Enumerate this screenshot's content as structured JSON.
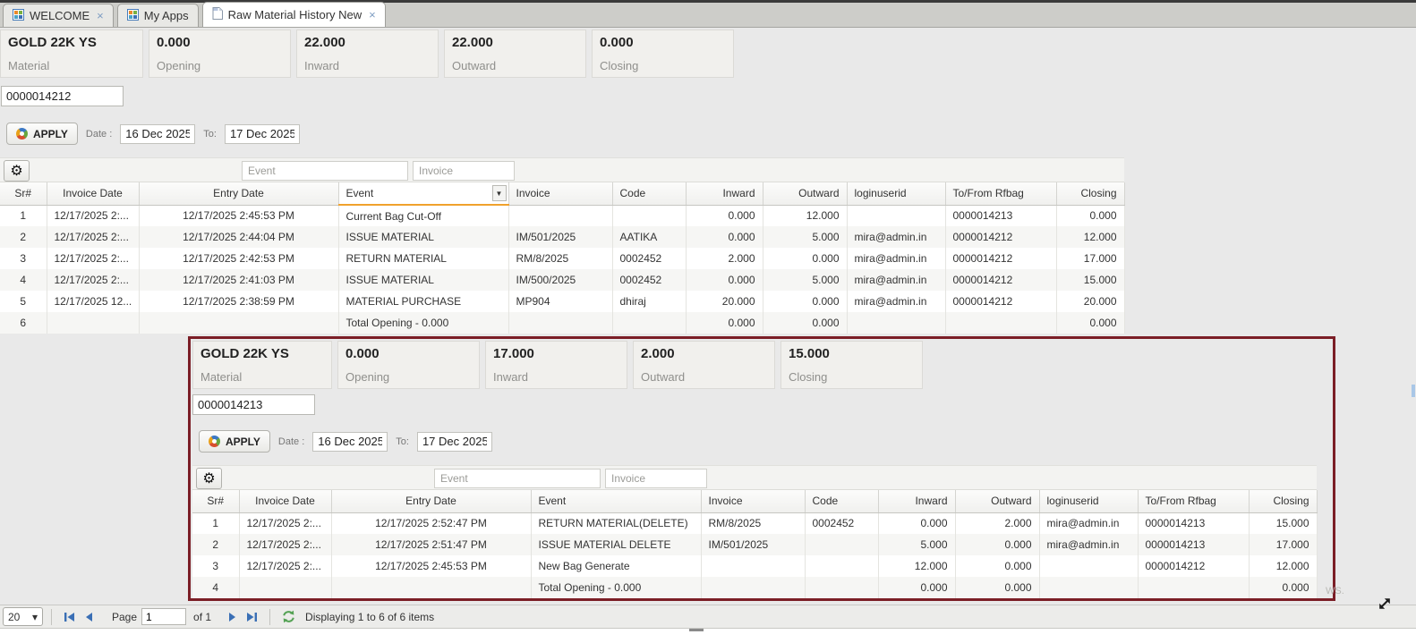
{
  "icons": {
    "gear": "⚙",
    "close": "×",
    "column_menu": "▼",
    "select_chevron": "▾"
  },
  "tabs": [
    {
      "label": "WELCOME",
      "active": false,
      "closable": true
    },
    {
      "label": "My Apps",
      "active": false,
      "closable": false
    },
    {
      "label": "Raw Material History New",
      "active": true,
      "closable": true
    }
  ],
  "panel1": {
    "summary": [
      {
        "value": "GOLD 22K YS",
        "label": "Material"
      },
      {
        "value": "0.000",
        "label": "Opening"
      },
      {
        "value": "22.000",
        "label": "Inward"
      },
      {
        "value": "22.000",
        "label": "Outward"
      },
      {
        "value": "0.000",
        "label": "Closing"
      }
    ],
    "bag_value": "0000014212",
    "apply": {
      "button": "APPLY",
      "date_label": "Date :",
      "from": "16 Dec 2025",
      "to_label": "To:",
      "to": "17 Dec 2025"
    },
    "filters": {
      "event_placeholder": "Event",
      "invoice_placeholder": "Invoice"
    },
    "table": {
      "columns": [
        "Sr#",
        "Invoice Date",
        "Entry Date",
        "Event",
        "Invoice",
        "Code",
        "Inward",
        "Outward",
        "loginuserid",
        "To/From Rfbag",
        "Closing"
      ],
      "rows": [
        [
          "1",
          "12/17/2025 2:...",
          "12/17/2025 2:45:53 PM",
          "Current Bag Cut-Off",
          "",
          "",
          "0.000",
          "12.000",
          "",
          "0000014213",
          "0.000"
        ],
        [
          "2",
          "12/17/2025 2:...",
          "12/17/2025 2:44:04 PM",
          "ISSUE MATERIAL",
          "IM/501/2025",
          "AATIKA",
          "0.000",
          "5.000",
          "mira@admin.in",
          "0000014212",
          "12.000"
        ],
        [
          "3",
          "12/17/2025 2:...",
          "12/17/2025 2:42:53 PM",
          "RETURN MATERIAL",
          "RM/8/2025",
          "0002452",
          "2.000",
          "0.000",
          "mira@admin.in",
          "0000014212",
          "17.000"
        ],
        [
          "4",
          "12/17/2025 2:...",
          "12/17/2025 2:41:03 PM",
          "ISSUE MATERIAL",
          "IM/500/2025",
          "0002452",
          "0.000",
          "5.000",
          "mira@admin.in",
          "0000014212",
          "15.000"
        ],
        [
          "5",
          "12/17/2025 12...",
          "12/17/2025 2:38:59 PM",
          "MATERIAL PURCHASE",
          "MP904",
          "dhiraj",
          "20.000",
          "0.000",
          "mira@admin.in",
          "0000014212",
          "20.000"
        ],
        [
          "6",
          "",
          "",
          "Total Opening - 0.000",
          "",
          "",
          "0.000",
          "0.000",
          "",
          "",
          "0.000"
        ]
      ]
    }
  },
  "panel2": {
    "summary": [
      {
        "value": "GOLD 22K YS",
        "label": "Material"
      },
      {
        "value": "0.000",
        "label": "Opening"
      },
      {
        "value": "17.000",
        "label": "Inward"
      },
      {
        "value": "2.000",
        "label": "Outward"
      },
      {
        "value": "15.000",
        "label": "Closing"
      }
    ],
    "bag_value": "0000014213",
    "apply": {
      "button": "APPLY",
      "date_label": "Date :",
      "from": "16 Dec 2025",
      "to_label": "To:",
      "to": "17 Dec 2025"
    },
    "filters": {
      "event_placeholder": "Event",
      "invoice_placeholder": "Invoice"
    },
    "table": {
      "columns": [
        "Sr#",
        "Invoice Date",
        "Entry Date",
        "Event",
        "Invoice",
        "Code",
        "Inward",
        "Outward",
        "loginuserid",
        "To/From Rfbag",
        "Closing"
      ],
      "rows": [
        [
          "1",
          "12/17/2025 2:...",
          "12/17/2025 2:52:47 PM",
          "RETURN MATERIAL(DELETE)",
          "RM/8/2025",
          "0002452",
          "0.000",
          "2.000",
          "mira@admin.in",
          "0000014213",
          "15.000"
        ],
        [
          "2",
          "12/17/2025 2:...",
          "12/17/2025 2:51:47 PM",
          "ISSUE MATERIAL DELETE",
          "IM/501/2025",
          "",
          "5.000",
          "0.000",
          "mira@admin.in",
          "0000014213",
          "17.000"
        ],
        [
          "3",
          "12/17/2025 2:...",
          "12/17/2025 2:45:53 PM",
          "New Bag Generate",
          "",
          "",
          "12.000",
          "0.000",
          "",
          "0000014212",
          "12.000"
        ],
        [
          "4",
          "",
          "",
          "Total Opening - 0.000",
          "",
          "",
          "0.000",
          "0.000",
          "",
          "",
          "0.000"
        ]
      ]
    }
  },
  "pagination": {
    "page_size": "20",
    "page_label": "Page",
    "page_value": "1",
    "of_label": "of 1",
    "status": "Displaying 1 to 6 of 6 items"
  },
  "watermark": "WS."
}
